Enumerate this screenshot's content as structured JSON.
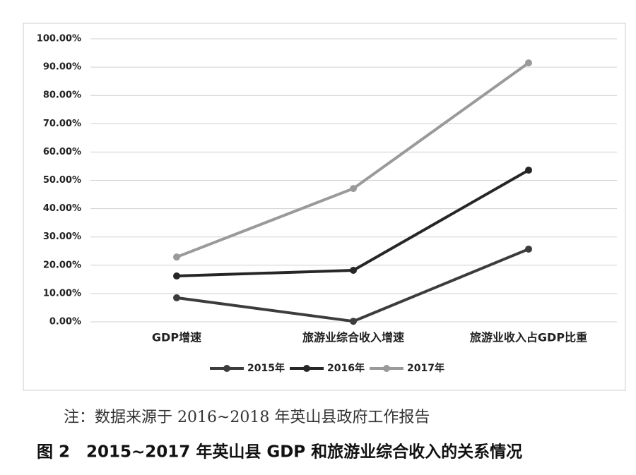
{
  "chart_data": {
    "type": "line",
    "categories": [
      "GDP增速",
      "旅游业综合收入增速",
      "旅游业收入占GDP比重"
    ],
    "series": [
      {
        "name": "2015年",
        "color": "#3c3c3c",
        "values": [
          8.5,
          0.2,
          25.7
        ]
      },
      {
        "name": "2016年",
        "color": "#262626",
        "values": [
          16.2,
          18.2,
          53.6
        ]
      },
      {
        "name": "2017年",
        "color": "#9a9a9a",
        "values": [
          22.9,
          47.1,
          91.5
        ]
      }
    ],
    "ylim": [
      0,
      100
    ],
    "yticks": [
      {
        "value": 0,
        "label": "0.00%"
      },
      {
        "value": 10,
        "label": "10.00%"
      },
      {
        "value": 20,
        "label": "20.00%"
      },
      {
        "value": 30,
        "label": "30.00%"
      },
      {
        "value": 40,
        "label": "40.00%"
      },
      {
        "value": 50,
        "label": "50.00%"
      },
      {
        "value": 60,
        "label": "60.00%"
      },
      {
        "value": 70,
        "label": "70.00%"
      },
      {
        "value": 80,
        "label": "80.00%"
      },
      {
        "value": 90,
        "label": "90.00%"
      },
      {
        "value": 100,
        "label": "100.00%"
      }
    ],
    "grid": true,
    "legend": "bottom",
    "note": "注：数据来源于 2016~2018 年英山县政府工作报告",
    "caption": "图 2　2015~2017 年英山县 GDP 和旅游业综合收入的关系情况"
  }
}
